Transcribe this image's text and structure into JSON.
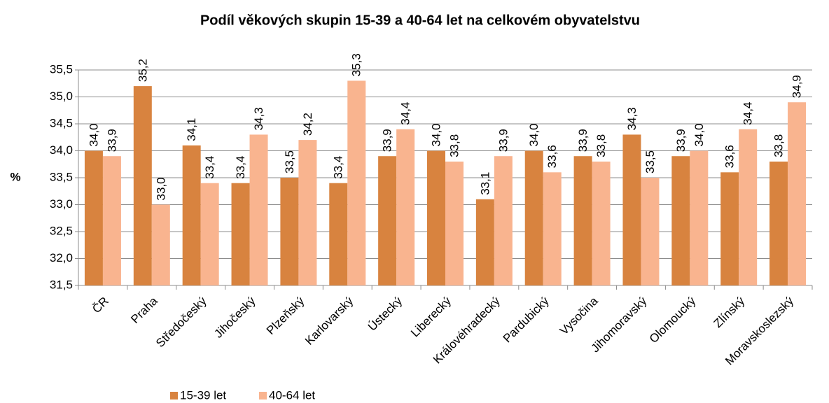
{
  "chart_data": {
    "type": "bar",
    "title": "Podíl věkových skupin 15-39 a 40-64 let na celkovém obyvatelstvu",
    "ylabel": "%",
    "categories": [
      "ČR",
      "Praha",
      "Středočeský",
      "Jihočeský",
      "Plzeňský",
      "Karlovarský",
      "Ústecký",
      "Liberecký",
      "Královéhradecký",
      "Pardubický",
      "Vysočina",
      "Jihomoravský",
      "Olomoucký",
      "Zlínský",
      "Moravskoslezský"
    ],
    "series": [
      {
        "name": "15-39 let",
        "color": "#d8833f",
        "values": [
          34.0,
          35.2,
          34.1,
          33.4,
          33.5,
          33.4,
          33.9,
          34.0,
          33.1,
          34.0,
          33.9,
          34.3,
          33.9,
          33.6,
          33.8
        ],
        "value_labels": [
          "34,0",
          "35,2",
          "34,1",
          "33,4",
          "33,5",
          "33,4",
          "33,9",
          "34,0",
          "33,1",
          "34,0",
          "33,9",
          "34,3",
          "33,9",
          "33,6",
          "33,8"
        ]
      },
      {
        "name": "40-64 let",
        "color": "#f9b48f",
        "values": [
          33.9,
          33.0,
          33.4,
          34.3,
          34.2,
          35.3,
          34.4,
          33.8,
          33.9,
          33.6,
          33.8,
          33.5,
          34.0,
          34.4,
          34.9
        ],
        "value_labels": [
          "33,9",
          "33,0",
          "33,4",
          "34,3",
          "34,2",
          "35,3",
          "34,4",
          "33,8",
          "33,9",
          "33,6",
          "33,8",
          "33,5",
          "34,0",
          "34,4",
          "34,9"
        ]
      }
    ],
    "ylim": [
      31.5,
      35.5
    ],
    "yticks": [
      {
        "value": 31.5,
        "label": "31,5"
      },
      {
        "value": 32,
        "label": "32,0"
      },
      {
        "value": 32.5,
        "label": "32,5"
      },
      {
        "value": 33,
        "label": "33,0"
      },
      {
        "value": 33.5,
        "label": "33,5"
      },
      {
        "value": 34,
        "label": "34,0"
      },
      {
        "value": 34.5,
        "label": "34,5"
      },
      {
        "value": 35,
        "label": "35,0"
      },
      {
        "value": 35.5,
        "label": "35,5"
      }
    ],
    "grid": true,
    "legend": "bottom"
  }
}
